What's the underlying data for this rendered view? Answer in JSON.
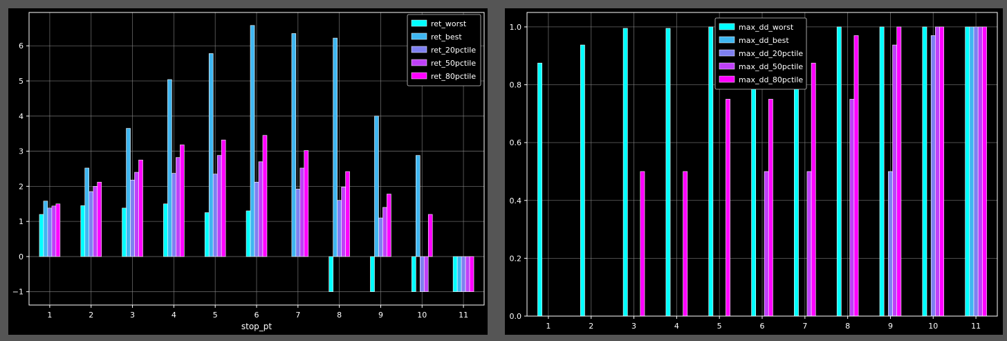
{
  "chart_data": [
    {
      "type": "bar",
      "title": "",
      "xlabel": "stop_pt",
      "ylabel": "",
      "categories": [
        "1",
        "2",
        "3",
        "4",
        "5",
        "6",
        "7",
        "8",
        "9",
        "10",
        "11"
      ],
      "ylim": [
        -1.38,
        6.95
      ],
      "yticks": [
        -1,
        0,
        1,
        2,
        3,
        4,
        5,
        6
      ],
      "ytick_labels": [
        "−1",
        "0",
        "1",
        "2",
        "3",
        "4",
        "5",
        "6"
      ],
      "grid": true,
      "legend_position": "top-right",
      "series": [
        {
          "name": "ret_worst",
          "color": "#00ffff",
          "values": [
            1.2,
            1.45,
            1.38,
            1.5,
            1.25,
            1.3,
            0.0,
            -1.0,
            -1.0,
            -1.0,
            -1.0
          ]
        },
        {
          "name": "ret_best",
          "color": "#3fb6f0",
          "values": [
            1.58,
            2.52,
            3.65,
            5.04,
            5.78,
            6.58,
            6.35,
            6.22,
            4.0,
            2.88,
            -1.0
          ]
        },
        {
          "name": "ret_20pctile",
          "color": "#7f80f0",
          "values": [
            1.38,
            1.85,
            2.18,
            2.37,
            2.35,
            2.12,
            1.92,
            1.6,
            1.1,
            -1.0,
            -1.0
          ]
        },
        {
          "name": "ret_50pctile",
          "color": "#bf40f8",
          "values": [
            1.44,
            2.0,
            2.4,
            2.82,
            2.88,
            2.7,
            2.52,
            1.98,
            1.4,
            -1.0,
            -1.0
          ]
        },
        {
          "name": "ret_80pctile",
          "color": "#ff00ff",
          "values": [
            1.5,
            2.12,
            2.75,
            3.18,
            3.32,
            3.45,
            3.02,
            2.42,
            1.78,
            1.2,
            -1.0
          ]
        }
      ]
    },
    {
      "type": "bar",
      "title": "",
      "xlabel": "",
      "ylabel": "",
      "categories": [
        "1",
        "2",
        "3",
        "4",
        "5",
        "6",
        "7",
        "8",
        "9",
        "10",
        "11"
      ],
      "ylim": [
        0.0,
        1.05
      ],
      "yticks": [
        0.0,
        0.2,
        0.4,
        0.6,
        0.8,
        1.0
      ],
      "ytick_labels": [
        "0.0",
        "0.2",
        "0.4",
        "0.6",
        "0.8",
        "1.0"
      ],
      "grid": true,
      "legend_position": "top-center",
      "series": [
        {
          "name": "max_dd_worst",
          "color": "#00ffff",
          "values": [
            0.875,
            0.9375,
            0.995,
            0.995,
            1.0,
            1.0,
            1.0,
            1.0,
            1.0,
            1.0,
            1.0
          ]
        },
        {
          "name": "max_dd_best",
          "color": "#3fb6f0",
          "values": [
            0.0,
            0.0,
            0.0,
            0.0,
            0.0,
            0.0,
            0.0,
            0.0,
            0.0,
            0.0,
            1.0
          ]
        },
        {
          "name": "max_dd_20pctile",
          "color": "#7f80f0",
          "values": [
            0.0,
            0.0,
            0.0,
            0.0,
            0.0,
            0.0,
            0.0,
            0.0,
            0.5,
            0.97,
            1.0
          ]
        },
        {
          "name": "max_dd_50pctile",
          "color": "#bf40f8",
          "values": [
            0.0,
            0.0,
            0.0,
            0.0,
            0.0,
            0.5,
            0.5,
            0.75,
            0.9375,
            1.0,
            1.0
          ]
        },
        {
          "name": "max_dd_80pctile",
          "color": "#ff00ff",
          "values": [
            0.0,
            0.0,
            0.5,
            0.5,
            0.75,
            0.75,
            0.875,
            0.97,
            1.0,
            1.0,
            1.0
          ]
        }
      ]
    }
  ]
}
